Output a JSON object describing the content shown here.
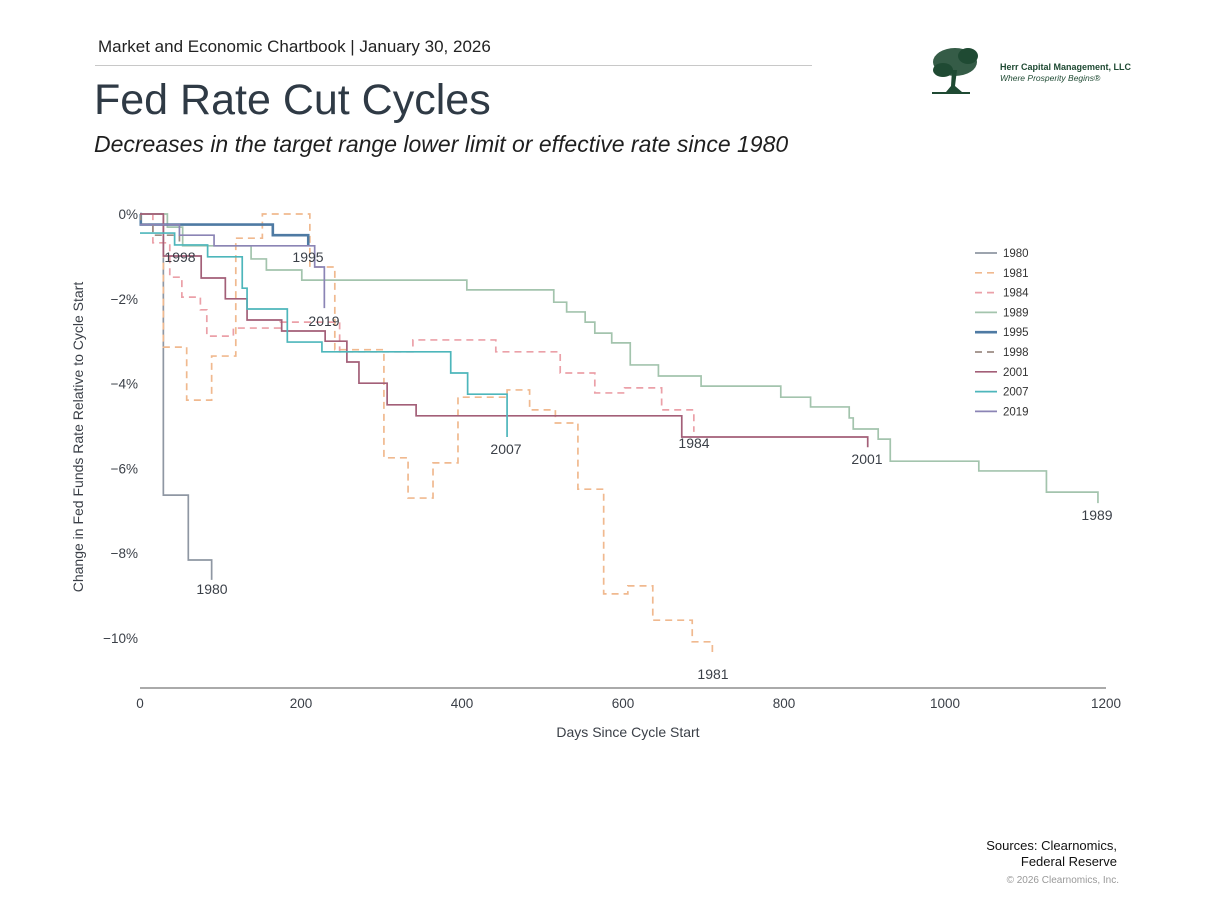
{
  "header": {
    "chartbook": "Market and Economic Chartbook | January 30, 2026",
    "title": "Fed Rate Cut Cycles",
    "subtitle": "Decreases in the target range lower limit or effective rate since 1980"
  },
  "logo": {
    "name": "Herr Capital Management, LLC",
    "tagline": "Where Prosperity Begins®",
    "icon": "tree-icon",
    "color": "#1f4a33"
  },
  "footer": {
    "sources_line1": "Sources: Clearnomics,",
    "sources_line2": "Federal Reserve",
    "copyright": "© 2026 Clearnomics, Inc."
  },
  "chart_data": {
    "type": "line",
    "step": true,
    "title": "",
    "xlabel": "Days Since Cycle Start",
    "ylabel": "Change in Fed Funds Rate Relative to Cycle Start",
    "xlim": [
      0,
      1200
    ],
    "ylim": [
      -11.2,
      0.2
    ],
    "xticks": [
      0,
      200,
      400,
      600,
      800,
      1000,
      1200
    ],
    "xtick_labels": [
      "0",
      "200",
      "400",
      "600",
      "800",
      "1000",
      "1200"
    ],
    "yticks": [
      0,
      -2,
      -4,
      -6,
      -8,
      -10
    ],
    "ytick_labels": [
      "0%",
      "−2%",
      "−4%",
      "−6%",
      "−8%",
      "−10%"
    ],
    "grid": false,
    "legend_position": "right",
    "series": [
      {
        "name": "1980",
        "color": "#8f97a3",
        "dashed": false,
        "points": [
          [
            0,
            0
          ],
          [
            29,
            -6.63
          ],
          [
            60,
            -8.16
          ],
          [
            89,
            -8.63
          ]
        ]
      },
      {
        "name": "1981",
        "color": "#f0b98f",
        "dashed": true,
        "points": [
          [
            0,
            0
          ],
          [
            29,
            -3.14
          ],
          [
            58,
            -4.39
          ],
          [
            89,
            -3.35
          ],
          [
            119,
            -0.57
          ],
          [
            152,
            0
          ],
          [
            211,
            -1.25
          ],
          [
            242,
            -3.2
          ],
          [
            303,
            -5.75
          ],
          [
            333,
            -6.7
          ],
          [
            364,
            -5.87
          ],
          [
            395,
            -4.32
          ],
          [
            456,
            -4.15
          ],
          [
            484,
            -4.62
          ],
          [
            516,
            -4.93
          ],
          [
            544,
            -6.49
          ],
          [
            576,
            -8.96
          ],
          [
            606,
            -8.77
          ],
          [
            637,
            -9.58
          ],
          [
            686,
            -10.09
          ],
          [
            711,
            -10.42
          ]
        ]
      },
      {
        "name": "1984",
        "color": "#eba0a8",
        "dashed": true,
        "points": [
          [
            0,
            0
          ],
          [
            16,
            -0.68
          ],
          [
            37,
            -1.49
          ],
          [
            52,
            -1.96
          ],
          [
            75,
            -2.26
          ],
          [
            83,
            -2.88
          ],
          [
            116,
            -2.69
          ],
          [
            174,
            -2.55
          ],
          [
            248,
            -3.25
          ],
          [
            339,
            -2.97
          ],
          [
            442,
            -3.25
          ],
          [
            522,
            -3.75
          ],
          [
            565,
            -4.22
          ],
          [
            602,
            -4.1
          ],
          [
            648,
            -4.62
          ],
          [
            688,
            -5.14
          ]
        ]
      },
      {
        "name": "1989",
        "color": "#a3c4ad",
        "dashed": false,
        "points": [
          [
            0,
            0
          ],
          [
            34,
            -0.31
          ],
          [
            53,
            -0.75
          ],
          [
            138,
            -1.06
          ],
          [
            157,
            -1.32
          ],
          [
            201,
            -1.56
          ],
          [
            406,
            -1.79
          ],
          [
            514,
            -2.08
          ],
          [
            530,
            -2.31
          ],
          [
            553,
            -2.55
          ],
          [
            565,
            -2.81
          ],
          [
            586,
            -3.04
          ],
          [
            609,
            -3.56
          ],
          [
            644,
            -3.82
          ],
          [
            697,
            -4.06
          ],
          [
            796,
            -4.32
          ],
          [
            833,
            -4.55
          ],
          [
            881,
            -4.81
          ],
          [
            886,
            -5.07
          ],
          [
            917,
            -5.31
          ],
          [
            932,
            -5.83
          ],
          [
            1042,
            -6.06
          ],
          [
            1126,
            -6.56
          ],
          [
            1190,
            -6.82
          ]
        ]
      },
      {
        "name": "1995",
        "color": "#4e7aa3",
        "dashed": false,
        "bold": true,
        "points": [
          [
            0,
            0
          ],
          [
            1,
            -0.25
          ],
          [
            165,
            -0.5
          ],
          [
            209,
            -0.75
          ]
        ]
      },
      {
        "name": "1998",
        "color": "#9c8c84",
        "dashed": true,
        "points": [
          [
            0,
            0
          ],
          [
            1,
            -0.25
          ],
          [
            16,
            -0.5
          ],
          [
            49,
            -0.75
          ]
        ]
      },
      {
        "name": "2001",
        "color": "#a35f78",
        "dashed": false,
        "points": [
          [
            0,
            0
          ],
          [
            29,
            -0.99
          ],
          [
            76,
            -1.51
          ],
          [
            106,
            -2.0
          ],
          [
            133,
            -2.5
          ],
          [
            176,
            -2.76
          ],
          [
            230,
            -3.0
          ],
          [
            257,
            -3.49
          ],
          [
            272,
            -3.99
          ],
          [
            307,
            -4.5
          ],
          [
            343,
            -4.76
          ],
          [
            673,
            -5.26
          ],
          [
            904,
            -5.5
          ]
        ]
      },
      {
        "name": "2007",
        "color": "#4db6bb",
        "dashed": false,
        "points": [
          [
            0,
            -0.45
          ],
          [
            43,
            -0.73
          ],
          [
            84,
            -1.01
          ],
          [
            127,
            -1.75
          ],
          [
            133,
            -2.24
          ],
          [
            183,
            -3.02
          ],
          [
            226,
            -3.25
          ],
          [
            386,
            -3.75
          ],
          [
            407,
            -4.25
          ],
          [
            456,
            -5.26
          ]
        ]
      },
      {
        "name": "2019",
        "color": "#8b84b5",
        "dashed": false,
        "points": [
          [
            0,
            -0.25
          ],
          [
            49,
            -0.5
          ],
          [
            92,
            -0.75
          ],
          [
            217,
            -1.25
          ],
          [
            229,
            -2.22
          ]
        ]
      }
    ]
  }
}
